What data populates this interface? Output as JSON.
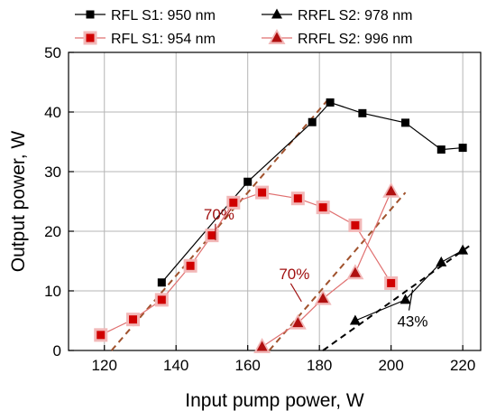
{
  "chart_data": {
    "type": "line",
    "xlabel": "Input pump power, W",
    "ylabel": "Output power, W",
    "xlim": [
      110,
      225
    ],
    "ylim": [
      0,
      50
    ],
    "x_ticks": [
      120,
      140,
      160,
      180,
      200,
      220
    ],
    "y_ticks": [
      0,
      10,
      20,
      30,
      40,
      50
    ],
    "grid": true,
    "legend_position": "top, above plot (2 columns)",
    "series": [
      {
        "name": "RFL S1: 950 nm",
        "marker": "square",
        "marker_color": "#000000",
        "line_color": "#000000",
        "points": [
          [
            136,
            11.4
          ],
          [
            160,
            28.3
          ],
          [
            178,
            38.3
          ],
          [
            183,
            41.6
          ],
          [
            192,
            39.8
          ],
          [
            204,
            38.2
          ],
          [
            214,
            33.7
          ],
          [
            220,
            34.0
          ]
        ]
      },
      {
        "name": "RFL S1: 954 nm",
        "marker": "square",
        "marker_color": "#d00000",
        "line_color": "#e07070",
        "halo_color": "#f2b8b8",
        "points": [
          [
            119,
            2.6
          ],
          [
            128,
            5.2
          ],
          [
            136,
            8.5
          ],
          [
            144,
            14.2
          ],
          [
            150,
            19.3
          ],
          [
            156,
            24.8
          ],
          [
            164,
            26.5
          ],
          [
            174,
            25.5
          ],
          [
            181,
            24.0
          ],
          [
            190,
            21.0
          ],
          [
            200,
            11.3
          ]
        ]
      },
      {
        "name": "RRFL S2: 978 nm",
        "marker": "triangle",
        "marker_color": "#000000",
        "line_color": "#000000",
        "points": [
          [
            190,
            5.0
          ],
          [
            204,
            8.5
          ],
          [
            214,
            14.8
          ],
          [
            220,
            16.8
          ]
        ]
      },
      {
        "name": "RRFL S2: 996 nm",
        "marker": "triangle",
        "marker_color": "#b01010",
        "line_color": "#e07070",
        "halo_color": "#f2b8b8",
        "points": [
          [
            164,
            0.6
          ],
          [
            174,
            4.6
          ],
          [
            181,
            8.7
          ],
          [
            190,
            13.0
          ],
          [
            200,
            26.7
          ]
        ]
      }
    ],
    "fit_lines": [
      {
        "color": "#a0522d",
        "dash": true,
        "from": [
          122,
          0
        ],
        "to": [
          183,
          42.5
        ]
      },
      {
        "color": "#a0522d",
        "dash": true,
        "from": [
          166,
          0
        ],
        "to": [
          204,
          26.5
        ]
      },
      {
        "color": "#000000",
        "dash": true,
        "from": [
          181,
          0
        ],
        "to": [
          222,
          17.6
        ]
      }
    ],
    "annotations": [
      {
        "text": "70%",
        "color": "#a01010",
        "at": [
          152,
          22
        ],
        "pointer_to": [
          151,
          18.5
        ]
      },
      {
        "text": "70%",
        "color": "#a01010",
        "at": [
          173,
          12.0
        ],
        "pointer_to": [
          175,
          8.2
        ]
      },
      {
        "text": "43%",
        "color": "#000000",
        "at": [
          206,
          4.0
        ],
        "pointer_to": [
          206,
          10.2
        ]
      }
    ]
  }
}
